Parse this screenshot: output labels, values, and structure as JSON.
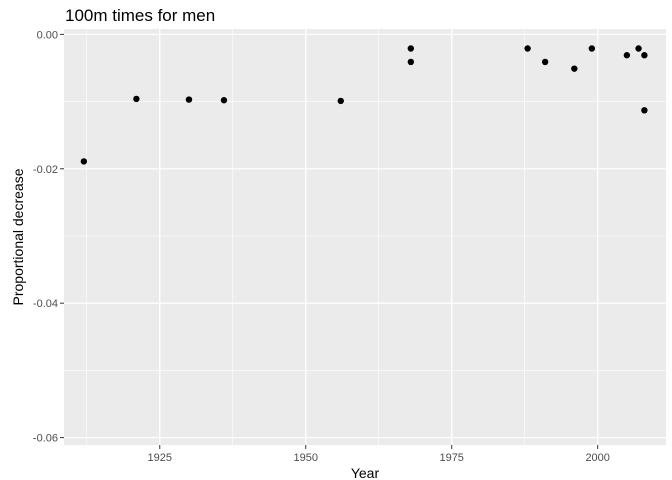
{
  "chart_data": {
    "type": "scatter",
    "title": "100m times for men",
    "xlabel": "Year",
    "ylabel": "Proportional decrease",
    "xlim": [
      1908.6,
      2011.7
    ],
    "ylim": [
      -0.0611,
      0.0008
    ],
    "x_ticks": [
      1925,
      1950,
      1975,
      2000
    ],
    "x_tick_labels": [
      "1925",
      "1950",
      "1975",
      "2000"
    ],
    "y_ticks": [
      0.0,
      -0.02,
      -0.04,
      -0.06
    ],
    "y_tick_labels": [
      "0.00",
      "-0.02",
      "-0.04",
      "-0.06"
    ],
    "grid": true,
    "legend": "none",
    "colors": {
      "panel": "#ebebeb",
      "grid_major": "#ffffff",
      "point": "#000000"
    },
    "points": [
      {
        "x": 1912,
        "y": -0.0189
      },
      {
        "x": 1921,
        "y": -0.0096
      },
      {
        "x": 1930,
        "y": -0.0097
      },
      {
        "x": 1936,
        "y": -0.0098
      },
      {
        "x": 1956,
        "y": -0.0099
      },
      {
        "x": 1968,
        "y": -0.0021
      },
      {
        "x": 1968,
        "y": -0.0041
      },
      {
        "x": 1988,
        "y": -0.0021
      },
      {
        "x": 1991,
        "y": -0.0041
      },
      {
        "x": 1996,
        "y": -0.0051
      },
      {
        "x": 1999,
        "y": -0.0021
      },
      {
        "x": 2005,
        "y": -0.0031
      },
      {
        "x": 2007,
        "y": -0.0021
      },
      {
        "x": 2008,
        "y": -0.0031
      },
      {
        "x": 2008,
        "y": -0.0113
      }
    ]
  }
}
